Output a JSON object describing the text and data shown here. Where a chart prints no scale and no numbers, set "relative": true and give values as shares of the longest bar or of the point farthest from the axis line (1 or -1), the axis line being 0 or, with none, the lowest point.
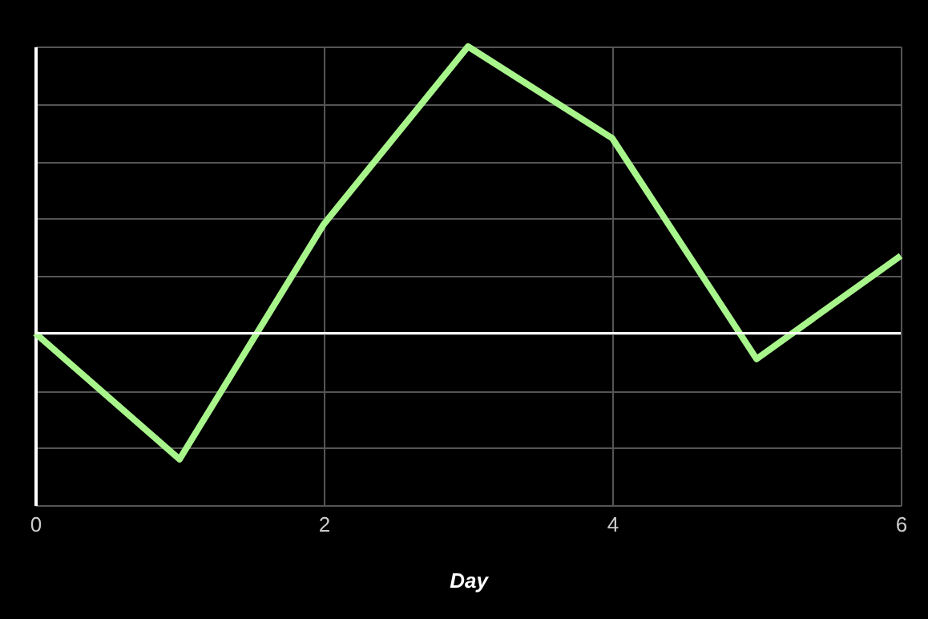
{
  "chart_data": {
    "type": "line",
    "relative": true,
    "xlabel": "Day",
    "x": [
      0,
      1,
      2,
      3,
      4,
      5,
      6
    ],
    "series": [
      {
        "color": "#a8f58c",
        "values": [
          0,
          -0.44,
          0.38,
          1,
          0.68,
          -0.09,
          0.27
        ]
      }
    ],
    "xlim": [
      0,
      6
    ],
    "xticks": [
      0,
      2,
      4,
      6
    ],
    "grid": true,
    "tick_labels": "x",
    "marker": "none",
    "line_style": "solid"
  }
}
